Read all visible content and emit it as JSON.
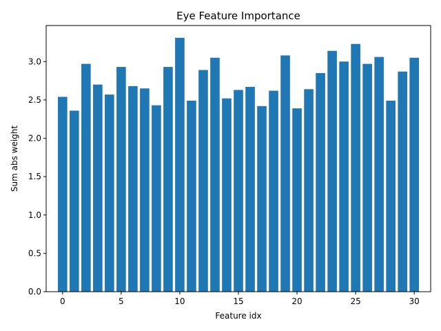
{
  "chart_data": {
    "type": "bar",
    "title": "Eye Feature Importance",
    "xlabel": "Feature idx",
    "ylabel": "Sum abs weight",
    "x": [
      0,
      1,
      2,
      3,
      4,
      5,
      6,
      7,
      8,
      9,
      10,
      11,
      12,
      13,
      14,
      15,
      16,
      17,
      18,
      19,
      20,
      21,
      22,
      23,
      24,
      25,
      26,
      27,
      28,
      29,
      30
    ],
    "values": [
      2.54,
      2.36,
      2.97,
      2.7,
      2.57,
      2.93,
      2.68,
      2.65,
      2.43,
      2.93,
      3.31,
      2.49,
      2.89,
      3.05,
      2.52,
      2.63,
      2.67,
      2.42,
      2.62,
      3.08,
      2.39,
      2.64,
      2.85,
      3.14,
      3.0,
      3.23,
      2.97,
      3.06,
      2.49,
      2.87,
      3.05
    ],
    "xlim": [
      -1.4,
      31.4
    ],
    "ylim": [
      0,
      3.47
    ],
    "xticks": [
      0,
      5,
      10,
      15,
      20,
      25,
      30
    ],
    "yticks": [
      0.0,
      0.5,
      1.0,
      1.5,
      2.0,
      2.5,
      3.0
    ],
    "ytick_labels": [
      "0.0",
      "0.5",
      "1.0",
      "1.5",
      "2.0",
      "2.5",
      "3.0"
    ],
    "grid": false,
    "bar_color": "#1f77b4"
  }
}
